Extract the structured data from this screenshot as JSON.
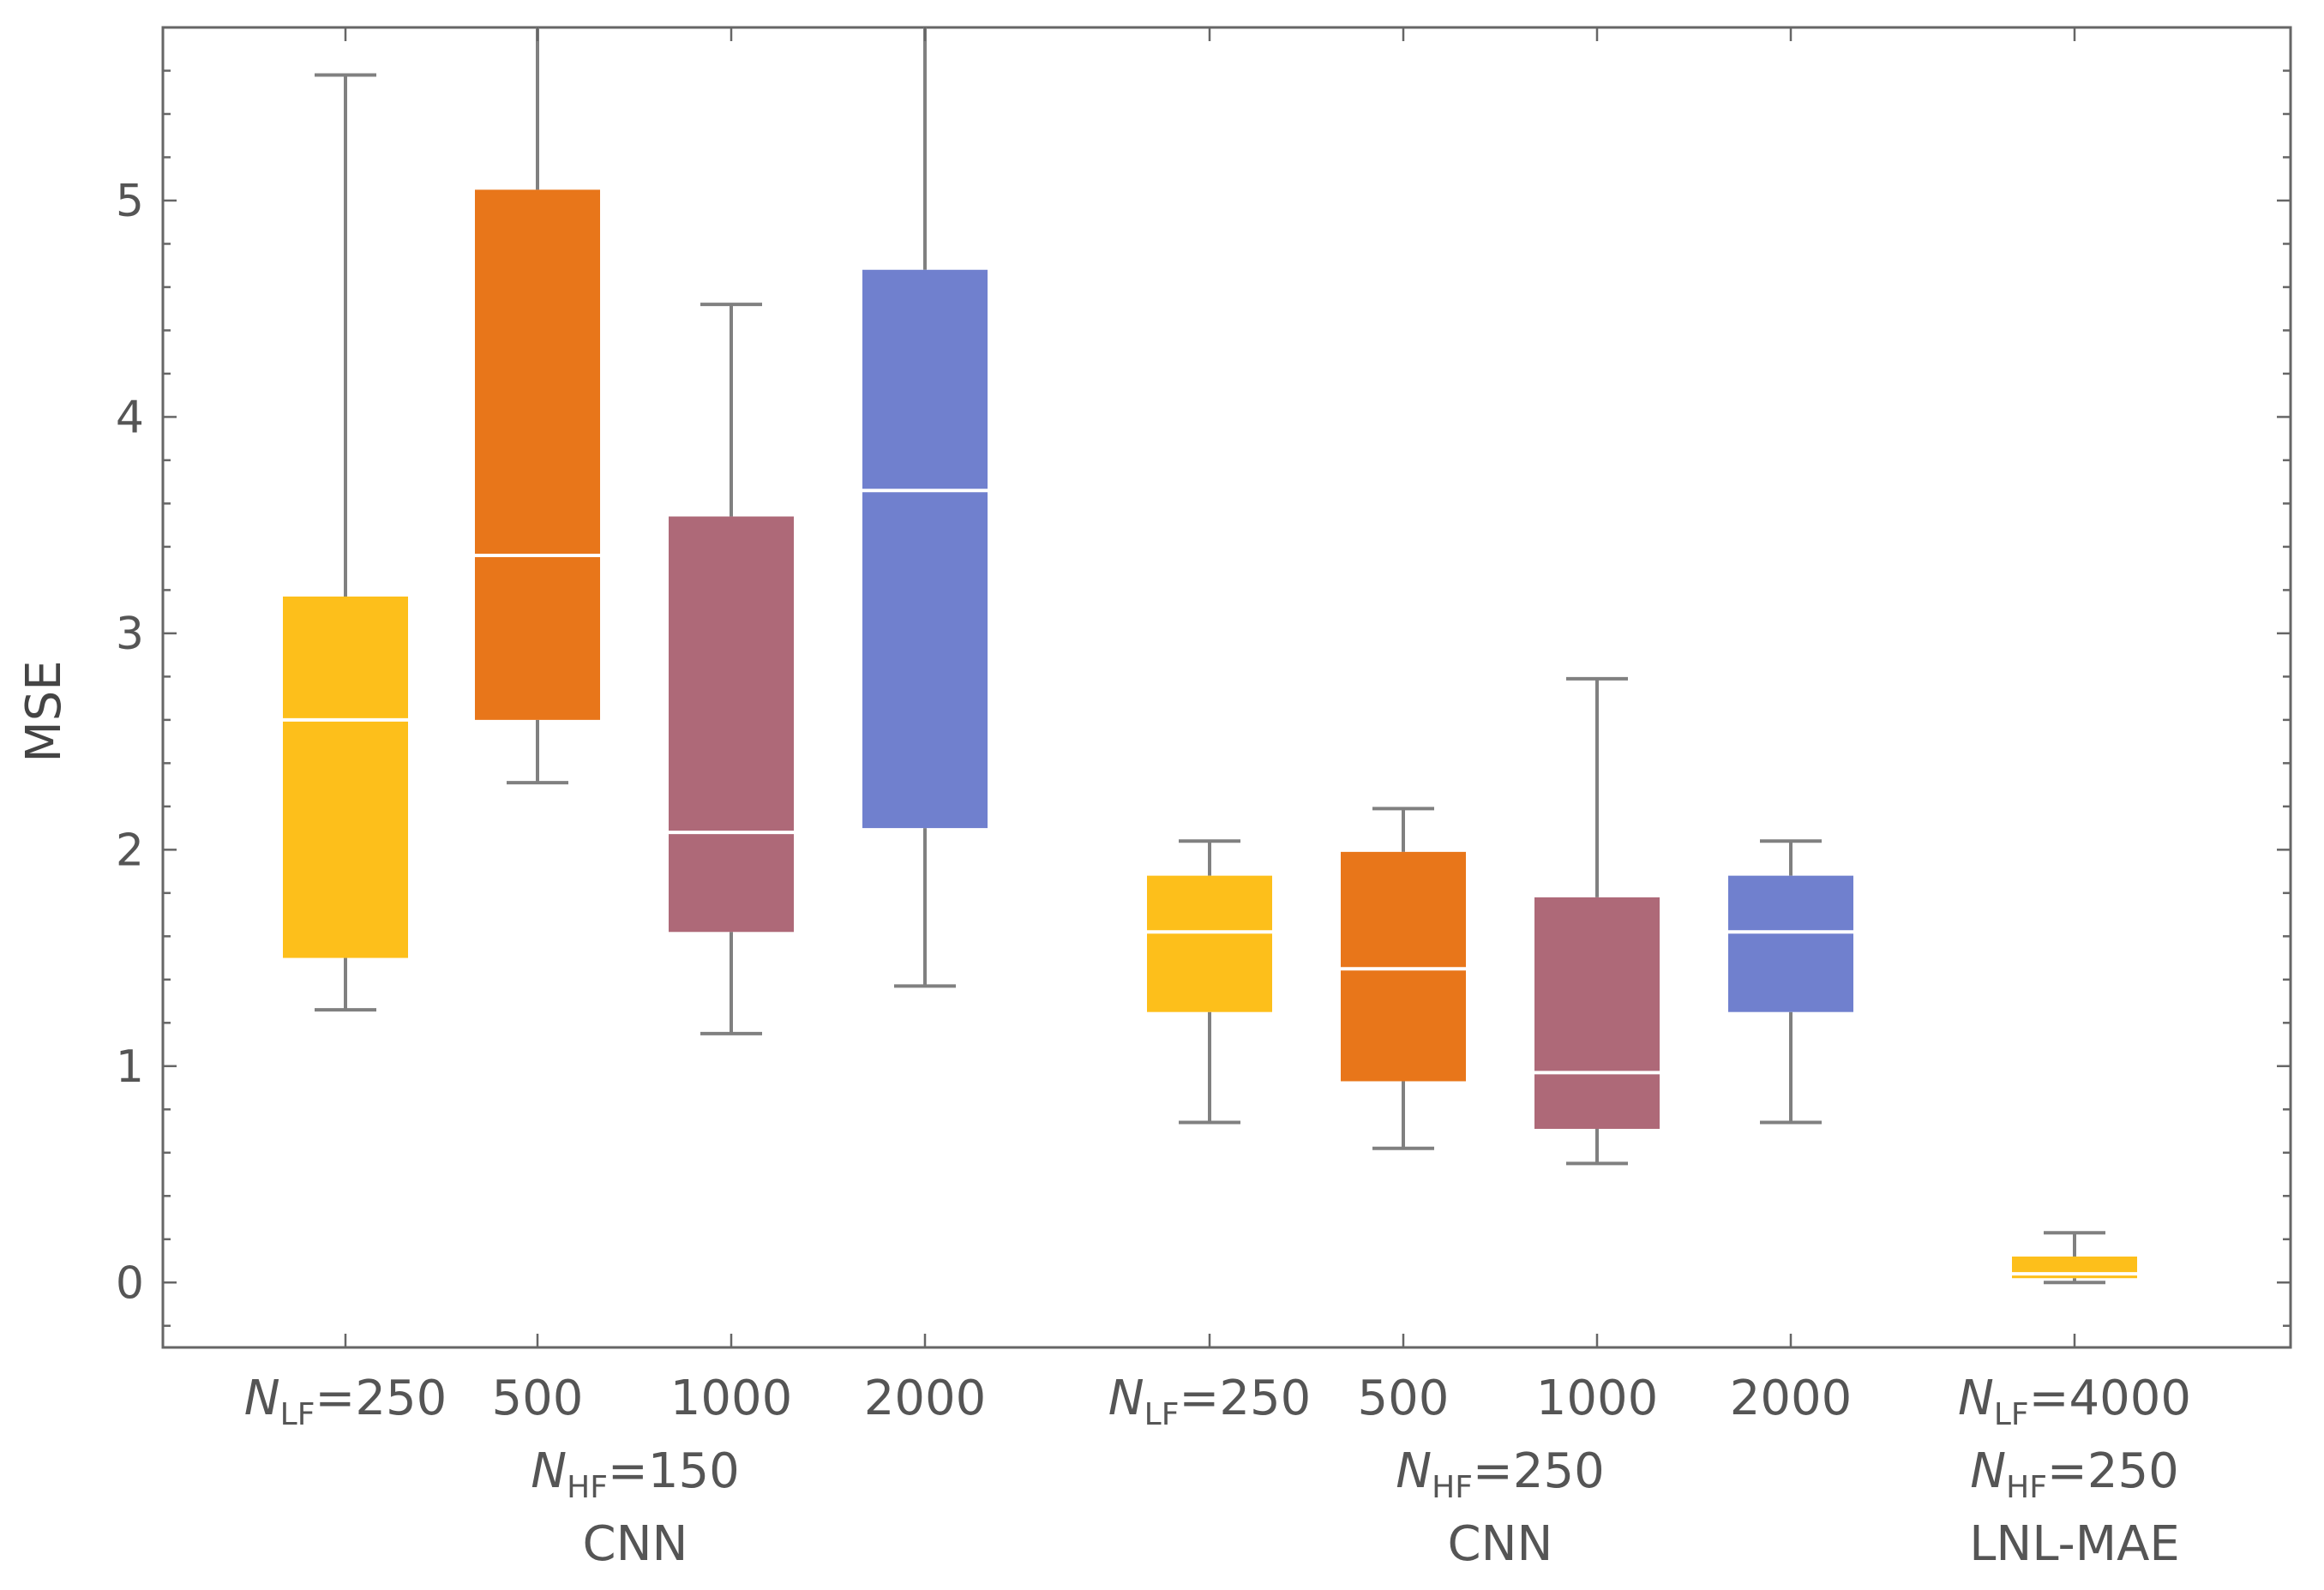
{
  "chart_data": {
    "type": "boxplot",
    "title": "",
    "xlabel": "",
    "ylabel": "MSE",
    "ylim": [
      -0.3,
      5.8
    ],
    "yticks": [
      0,
      1,
      2,
      3,
      4,
      5
    ],
    "colors": {
      "nlf250": "#fdbf1b",
      "nlf500": "#e8761a",
      "nlf1000": "#ae6978",
      "nlf2000": "#7080ce",
      "whisker": "#808080",
      "median": "#ffffff",
      "frame": "#666666"
    },
    "groups": [
      {
        "name": "CNN, N_HF=150",
        "label_line2": "N_HF=150",
        "label_line3": "CNN",
        "boxes": [
          {
            "label": "N_LF=250",
            "color_key": "nlf250",
            "whisker_low": 1.26,
            "q1": 1.5,
            "median": 2.6,
            "q3": 3.17,
            "whisker_high": 5.58
          },
          {
            "label": "500",
            "color_key": "nlf500",
            "whisker_low": 2.31,
            "q1": 2.6,
            "median": 3.36,
            "q3": 5.05,
            "whisker_high": 5.8
          },
          {
            "label": "1000",
            "color_key": "nlf1000",
            "whisker_low": 1.15,
            "q1": 1.62,
            "median": 2.08,
            "q3": 3.54,
            "whisker_high": 4.52
          },
          {
            "label": "2000",
            "color_key": "nlf2000",
            "whisker_low": 1.37,
            "q1": 2.1,
            "median": 3.66,
            "q3": 4.68,
            "whisker_high": 5.8
          }
        ]
      },
      {
        "name": "CNN, N_HF=250",
        "label_line2": "N_HF=250",
        "label_line3": "CNN",
        "boxes": [
          {
            "label": "N_LF=250",
            "color_key": "nlf250",
            "whisker_low": 0.74,
            "q1": 1.25,
            "median": 1.62,
            "q3": 1.88,
            "whisker_high": 2.04
          },
          {
            "label": "500",
            "color_key": "nlf500",
            "whisker_low": 0.62,
            "q1": 0.93,
            "median": 1.45,
            "q3": 1.99,
            "whisker_high": 2.19
          },
          {
            "label": "1000",
            "color_key": "nlf1000",
            "whisker_low": 0.55,
            "q1": 0.71,
            "median": 0.97,
            "q3": 1.78,
            "whisker_high": 2.79
          },
          {
            "label": "2000",
            "color_key": "nlf2000",
            "whisker_low": 0.74,
            "q1": 1.25,
            "median": 1.62,
            "q3": 1.88,
            "whisker_high": 2.04
          }
        ]
      },
      {
        "name": "LNL-MAE, N_LF=4000, N_HF=250",
        "label_line2": "N_HF=250",
        "label_line3": "LNL-MAE",
        "boxes": [
          {
            "label": "N_LF=4000",
            "color_key": "nlf250",
            "whisker_low": 0.0,
            "q1": 0.02,
            "median": 0.04,
            "q3": 0.12,
            "whisker_high": 0.23
          }
        ]
      }
    ]
  }
}
